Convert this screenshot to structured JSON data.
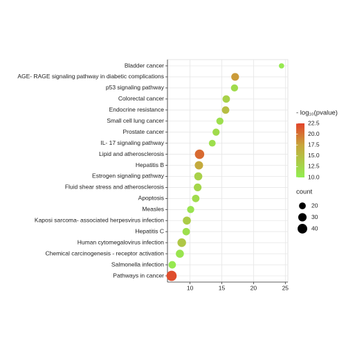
{
  "chart_data": {
    "type": "dot",
    "categories": [
      "Bladder cancer",
      "AGE- RAGE signaling pathway in diabetic complications",
      "p53 signaling pathway",
      "Colorectal cancer",
      "Endocrine resistance",
      "Small cell lung cancer",
      "Prostate cancer",
      "IL- 17 signaling pathway",
      "Lipid and atherosclerosis",
      "Hepatitis B",
      "Estrogen signaling pathway",
      "Fluid shear stress and atherosclerosis",
      "Apoptosis",
      "Measles",
      "Kaposi sarcoma- associated herpesvirus infection",
      "Hepatitis C",
      "Human cytomegalovirus infection",
      "Chemical carcinogenesis -  receptor activation",
      "Salmonella infection",
      "Pathways in cancer"
    ],
    "values": [
      24.4,
      17.1,
      17.0,
      15.7,
      15.6,
      14.7,
      14.1,
      13.5,
      11.5,
      11.4,
      11.3,
      11.2,
      10.9,
      10.1,
      9.5,
      9.4,
      8.7,
      8.4,
      7.2,
      7.1
    ],
    "size": [
      12,
      26,
      22,
      24,
      24,
      22,
      22,
      20,
      38,
      30,
      28,
      26,
      24,
      22,
      28,
      24,
      32,
      28,
      24,
      45
    ],
    "neg_log10_p": [
      10.5,
      18,
      12,
      13,
      15,
      11.5,
      12,
      11.5,
      20.5,
      17,
      13,
      12.5,
      12,
      11,
      13.5,
      11.5,
      14,
      11,
      10.5,
      22
    ],
    "xlim": [
      6.45,
      25.4
    ],
    "xticks": [
      10,
      15,
      20,
      25
    ],
    "grid": true,
    "color_title": "- log₁₀(pvalue)",
    "color_lim": [
      10,
      22.5
    ],
    "color_ticks": [
      {
        "value": 10,
        "label": "10.0"
      },
      12.5,
      {
        "value": 15,
        "label": "15.0"
      },
      17.5,
      {
        "value": 20,
        "label": "20.0"
      },
      22.5
    ],
    "color_scale": [
      "#92ee52",
      "#c8a53b",
      "#e2432a"
    ],
    "size_title": "count",
    "size_ticks": [
      20,
      30,
      40
    ]
  }
}
